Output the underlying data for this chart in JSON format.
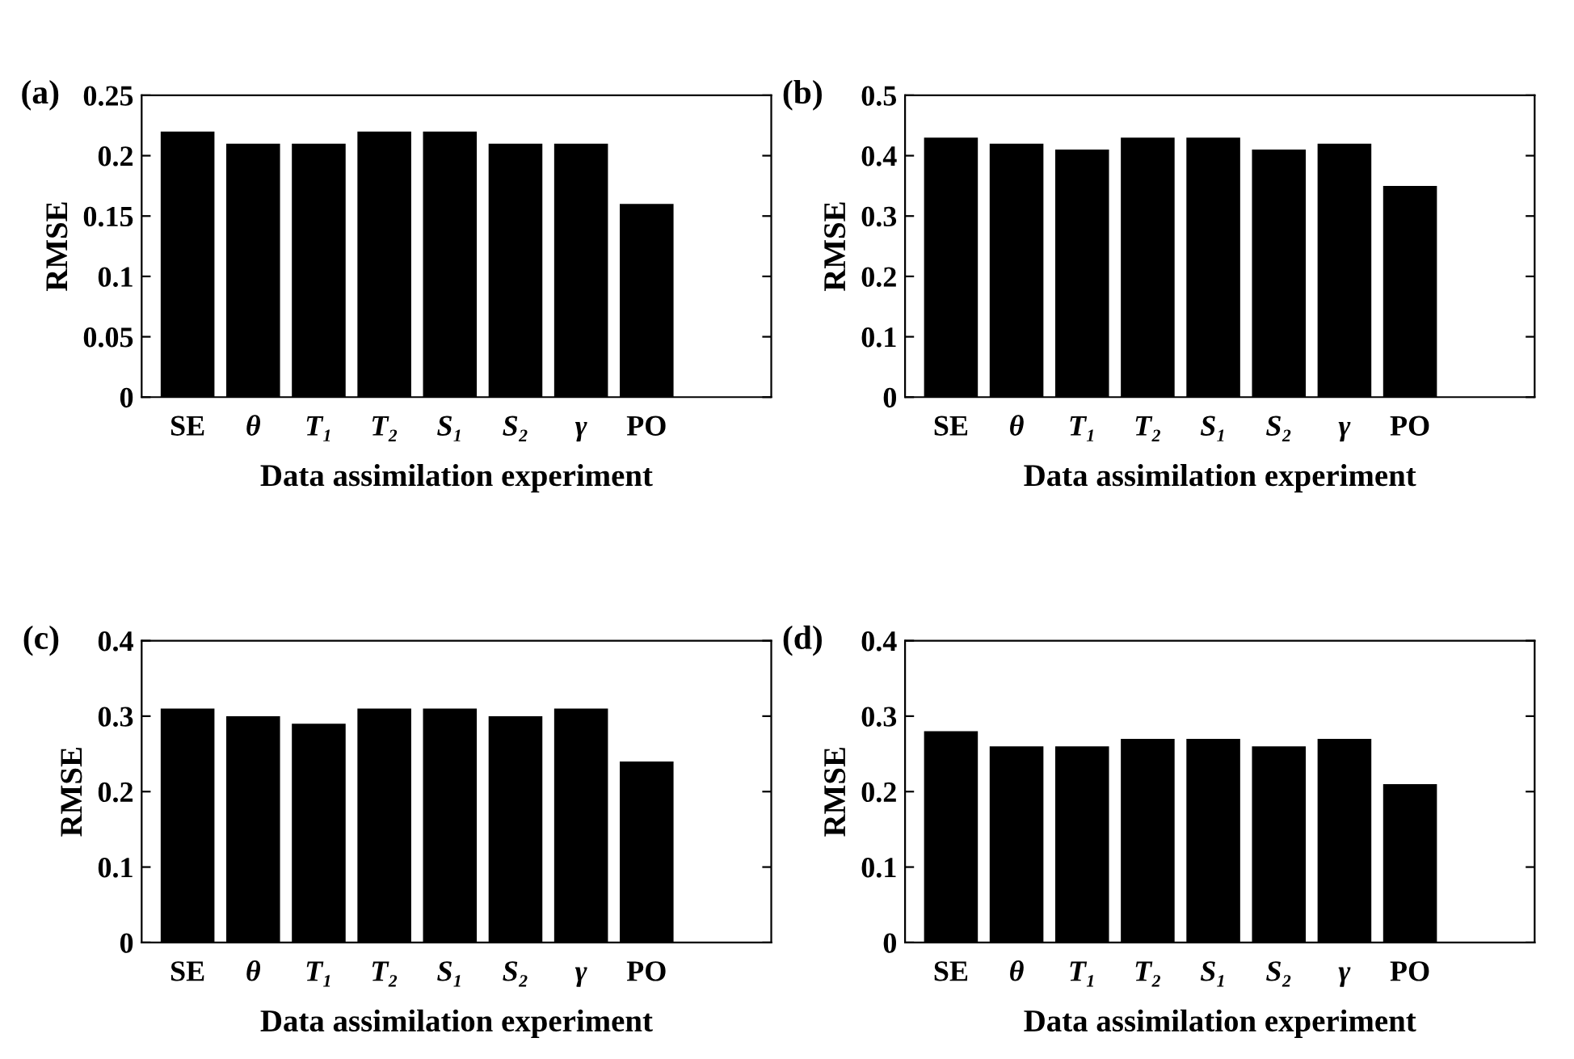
{
  "chart_data": [
    {
      "type": "bar",
      "title": "(a)",
      "xlabel": "Data assimilation experiment",
      "ylabel": "RMSE",
      "categories": [
        "SE",
        "θ",
        "T₁",
        "T₂",
        "S₁",
        "S₂",
        "γ",
        "PO"
      ],
      "values": [
        0.22,
        0.21,
        0.21,
        0.22,
        0.22,
        0.21,
        0.21,
        0.16
      ],
      "color": "#000000",
      "ylim": [
        0,
        0.25
      ],
      "yticks": [
        0,
        0.05,
        0.1,
        0.15,
        0.2,
        0.25
      ],
      "grid": false,
      "legend": false
    },
    {
      "type": "bar",
      "title": "(b)",
      "xlabel": "Data assimilation experiment",
      "ylabel": "RMSE",
      "categories": [
        "SE",
        "θ",
        "T₁",
        "T₂",
        "S₁",
        "S₂",
        "γ",
        "PO"
      ],
      "values": [
        0.43,
        0.42,
        0.41,
        0.43,
        0.43,
        0.41,
        0.42,
        0.35
      ],
      "color": "#000000",
      "ylim": [
        0,
        0.5
      ],
      "yticks": [
        0,
        0.1,
        0.2,
        0.3,
        0.4,
        0.5
      ],
      "grid": false,
      "legend": false
    },
    {
      "type": "bar",
      "title": "(c)",
      "xlabel": "Data assimilation experiment",
      "ylabel": "RMSE",
      "categories": [
        "SE",
        "θ",
        "T₁",
        "T₂",
        "S₁",
        "S₂",
        "γ",
        "PO"
      ],
      "values": [
        0.31,
        0.3,
        0.29,
        0.31,
        0.31,
        0.3,
        0.31,
        0.24
      ],
      "color": "#000000",
      "ylim": [
        0,
        0.4
      ],
      "yticks": [
        0,
        0.1,
        0.2,
        0.3,
        0.4
      ],
      "grid": false,
      "legend": false
    },
    {
      "type": "bar",
      "title": "(d)",
      "xlabel": "Data assimilation experiment",
      "ylabel": "RMSE",
      "categories": [
        "SE",
        "θ",
        "T₁",
        "T₂",
        "S₁",
        "S₂",
        "γ",
        "PO"
      ],
      "values": [
        0.28,
        0.26,
        0.26,
        0.27,
        0.27,
        0.26,
        0.27,
        0.21
      ],
      "color": "#000000",
      "ylim": [
        0,
        0.4
      ],
      "yticks": [
        0,
        0.1,
        0.2,
        0.3,
        0.4
      ],
      "grid": false,
      "legend": false
    }
  ]
}
